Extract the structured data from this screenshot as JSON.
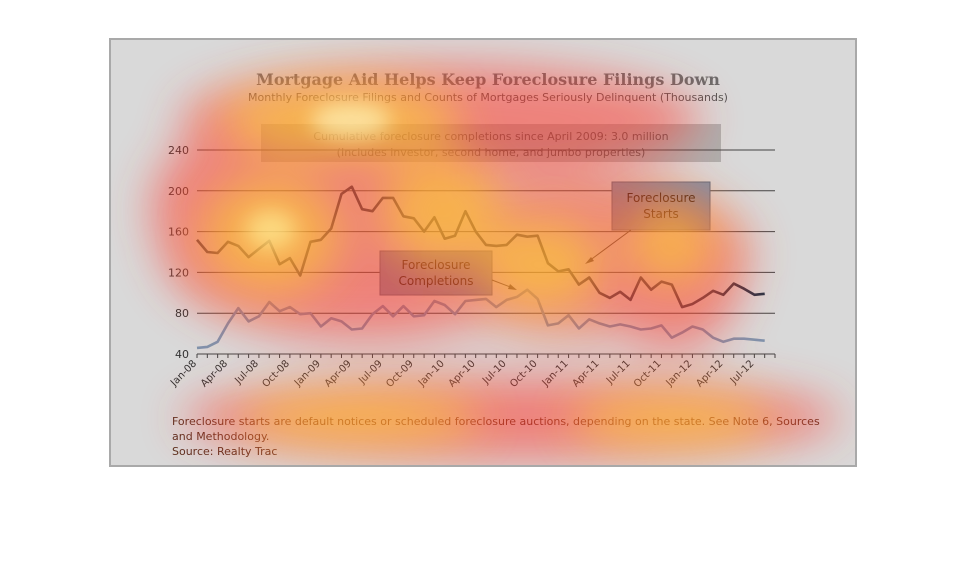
{
  "chart_data": {
    "type": "line",
    "title": "Mortgage Aid Helps Keep Foreclosure Filings Down",
    "subtitle": "Monthly Foreclosure Filings and Counts of Mortgages Seriously Delinquent (Thousands)",
    "note_line1": "Cumulative foreclosure completions since April 2009: 3.0 million",
    "note_line2": "(Includes investor, second home, and jumbo properties)",
    "xlabel": "",
    "ylabel": "",
    "ylim": [
      40,
      240
    ],
    "yticks": [
      "240",
      "200",
      "160",
      "120",
      "80",
      "40"
    ],
    "grid": true,
    "x_tick_labels": [
      "Jan-08",
      "Apr-08",
      "Jul-08",
      "Oct-08",
      "Jan-09",
      "Apr-09",
      "Jul-09",
      "Oct-09",
      "Jan-10",
      "Apr-10",
      "Jul-10",
      "Oct-10",
      "Jan-11",
      "Apr-11",
      "Jul-11",
      "Oct-11",
      "Jan-12",
      "Apr-12",
      "Jul-12"
    ],
    "x_tick_months": [
      0,
      3,
      6,
      9,
      12,
      15,
      18,
      21,
      24,
      27,
      30,
      33,
      36,
      39,
      42,
      45,
      48,
      51,
      54
    ],
    "months": 57,
    "series": [
      {
        "name": "Foreclosure Starts",
        "color": "#243447",
        "values": [
          152,
          140,
          139,
          150,
          146,
          135,
          143,
          151,
          128,
          134,
          117,
          150,
          152,
          163,
          197,
          204,
          182,
          180,
          193,
          193,
          175,
          173,
          160,
          174,
          153,
          156,
          180,
          160,
          147,
          146,
          147,
          157,
          155,
          156,
          129,
          121,
          123,
          108,
          115,
          100,
          95,
          101,
          93,
          115,
          103,
          111,
          108,
          86,
          89,
          95,
          102,
          98,
          109,
          104,
          98,
          99
        ]
      },
      {
        "name": "Foreclosure Completions",
        "color": "#7f93ad",
        "values": [
          46,
          47,
          52,
          70,
          85,
          72,
          77,
          91,
          82,
          86,
          79,
          80,
          67,
          75,
          72,
          64,
          65,
          79,
          87,
          77,
          87,
          77,
          78,
          92,
          88,
          79,
          92,
          93,
          94,
          86,
          93,
          96,
          103,
          94,
          68,
          70,
          78,
          65,
          74,
          70,
          67,
          69,
          67,
          64,
          65,
          68,
          56,
          61,
          67,
          64,
          56,
          52,
          55,
          55,
          54,
          53
        ]
      }
    ],
    "callouts": {
      "starts": [
        "Foreclosure",
        "Starts"
      ],
      "completions": [
        "Foreclosure",
        "Completions"
      ]
    },
    "footer_line1": "Foreclosure starts are default notices or scheduled foreclosure auctions, depending on the state. See Note 6, Sources",
    "footer_line2": "and Methodology.",
    "source": "Source: Realty Trac"
  }
}
